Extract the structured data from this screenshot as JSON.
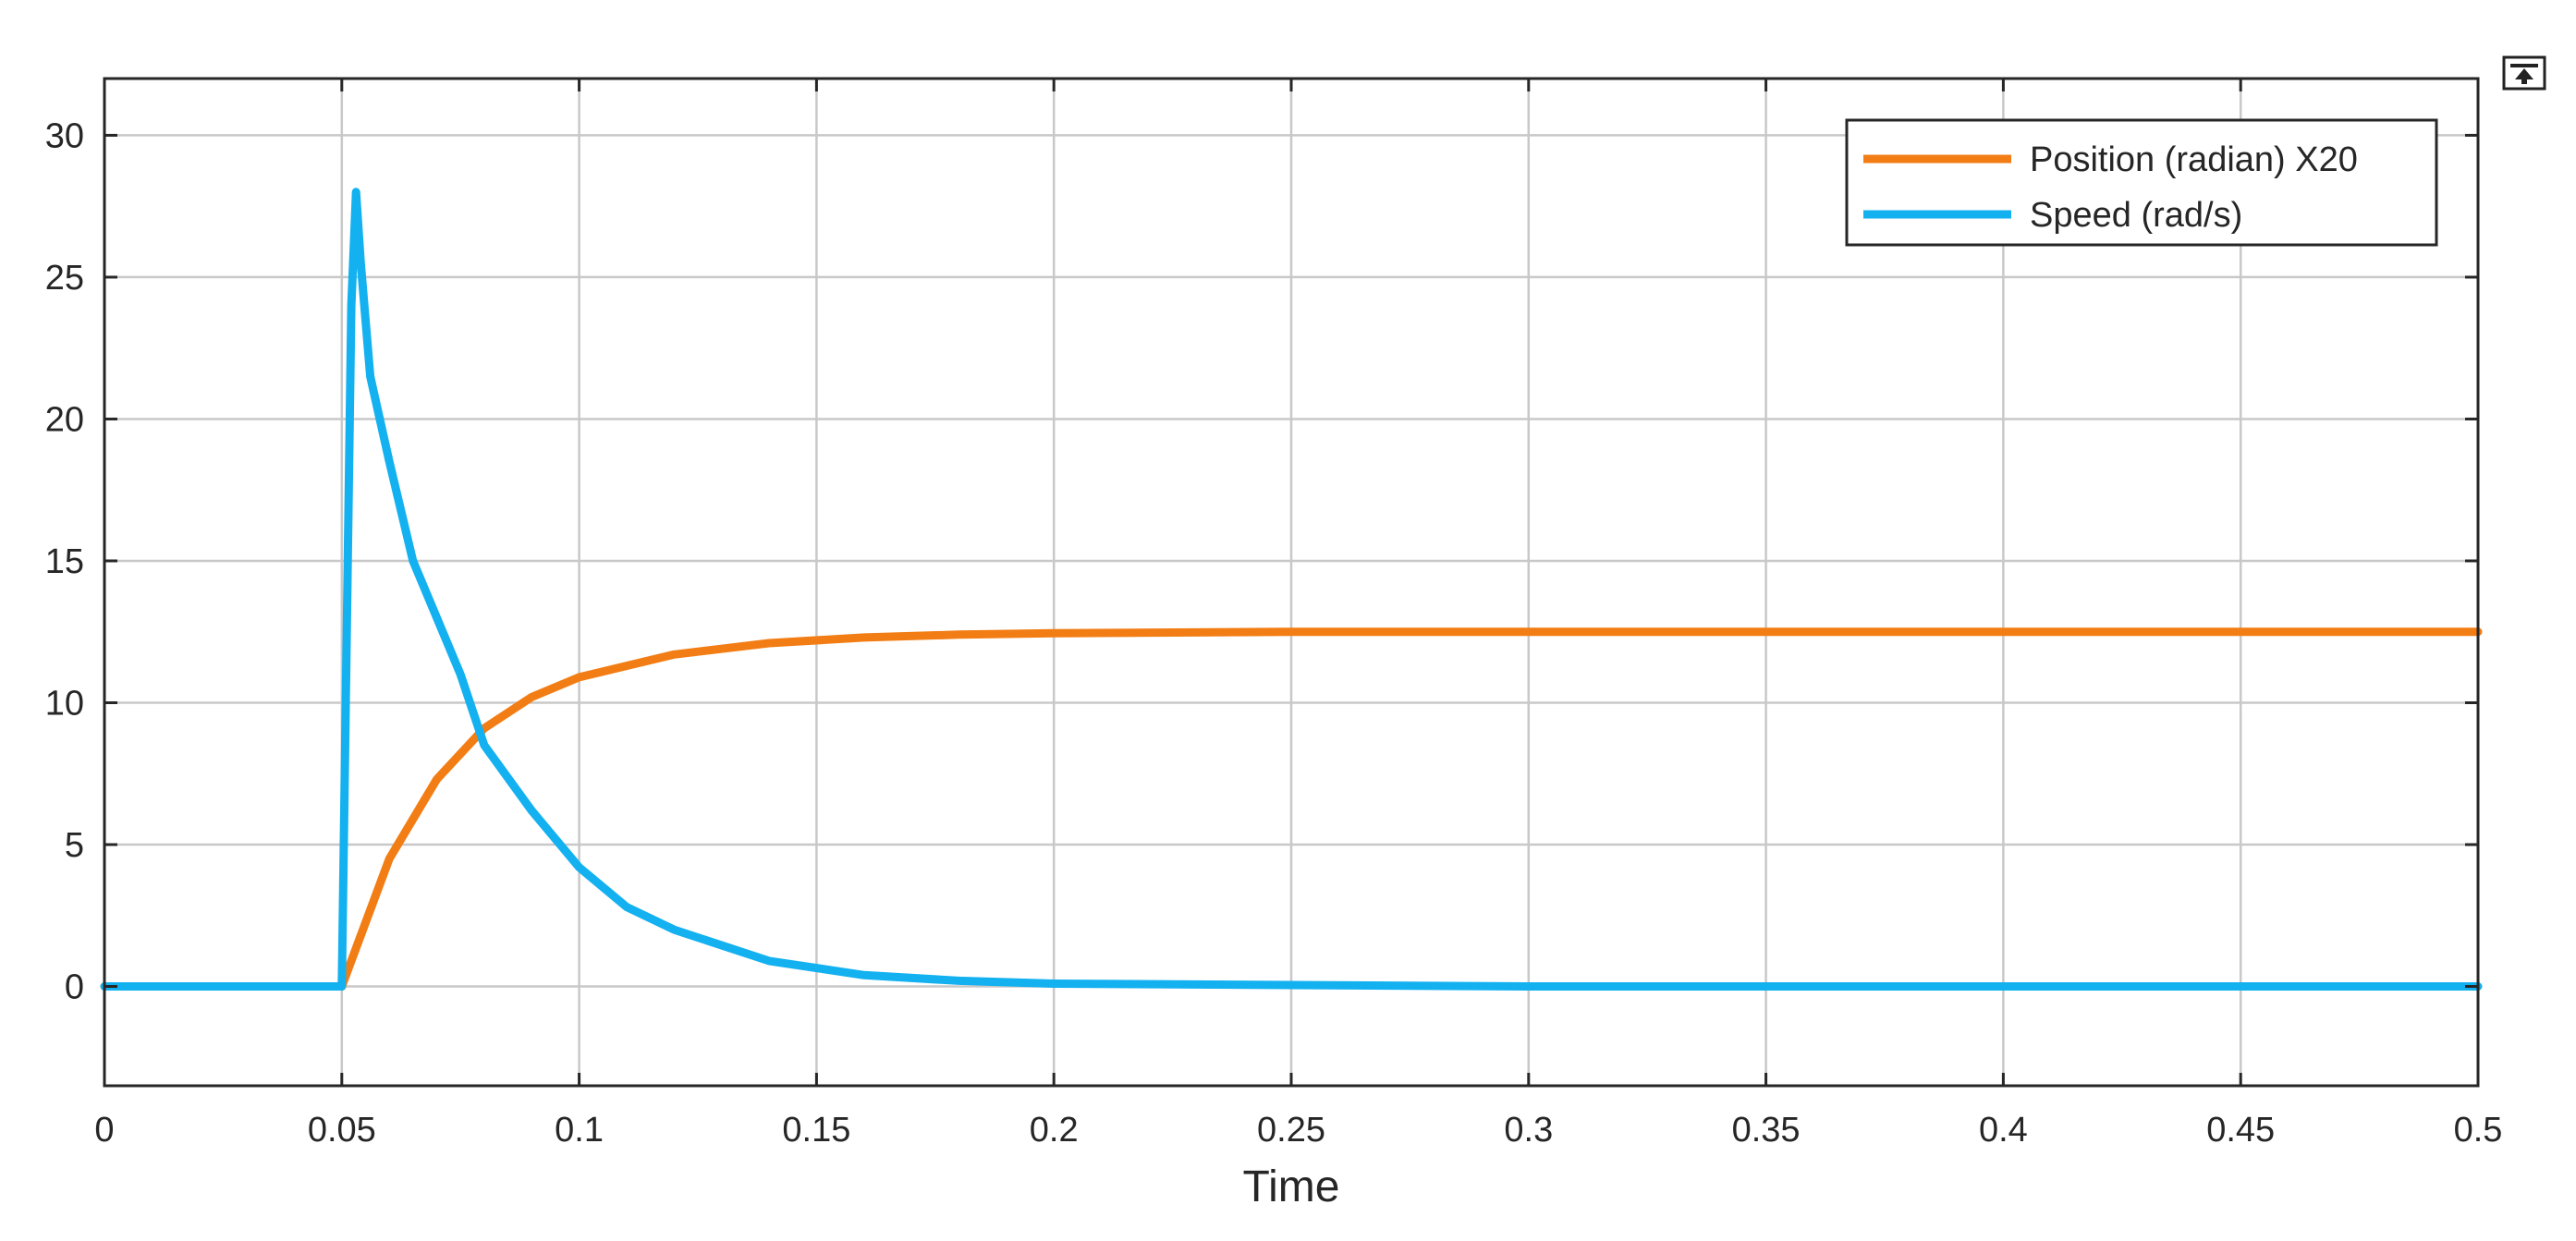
{
  "chart_data": {
    "type": "line",
    "title": "",
    "xlabel": "Time",
    "ylabel": "",
    "xlim": [
      0,
      0.5
    ],
    "ylim": [
      -3.5,
      32
    ],
    "x_ticks": [
      0,
      0.05,
      0.1,
      0.15,
      0.2,
      0.25,
      0.3,
      0.35,
      0.4,
      0.45,
      0.5
    ],
    "x_tick_labels": [
      "0",
      "0.05",
      "0.1",
      "0.15",
      "0.2",
      "0.25",
      "0.3",
      "0.35",
      "0.4",
      "0.45",
      "0.5"
    ],
    "y_ticks": [
      0,
      5,
      10,
      15,
      20,
      25,
      30
    ],
    "y_tick_labels": [
      "0",
      "5",
      "10",
      "15",
      "20",
      "25",
      "30"
    ],
    "grid": true,
    "legend_position": "top-right",
    "series": [
      {
        "name": "Position (radian) X20",
        "color": "#f27d14",
        "x": [
          0,
          0.05,
          0.06,
          0.07,
          0.08,
          0.09,
          0.1,
          0.12,
          0.14,
          0.16,
          0.18,
          0.2,
          0.25,
          0.3,
          0.4,
          0.5
        ],
        "values": [
          0,
          0,
          4.5,
          7.3,
          9.1,
          10.2,
          10.9,
          11.7,
          12.1,
          12.3,
          12.4,
          12.45,
          12.5,
          12.5,
          12.5,
          12.5
        ]
      },
      {
        "name": "Speed (rad/s)",
        "color": "#14b1f0",
        "x": [
          0,
          0.05,
          0.052,
          0.053,
          0.054,
          0.056,
          0.058,
          0.06,
          0.065,
          0.07,
          0.075,
          0.08,
          0.09,
          0.1,
          0.11,
          0.12,
          0.14,
          0.16,
          0.18,
          0.2,
          0.25,
          0.3,
          0.4,
          0.5
        ],
        "values": [
          0,
          0,
          24,
          28,
          25.5,
          21.5,
          20,
          18.5,
          15,
          13,
          11,
          8.5,
          6.2,
          4.2,
          2.8,
          2.0,
          0.9,
          0.4,
          0.2,
          0.1,
          0.05,
          0,
          0,
          0
        ]
      }
    ]
  },
  "icons": {
    "dock_button": "dock-icon"
  }
}
